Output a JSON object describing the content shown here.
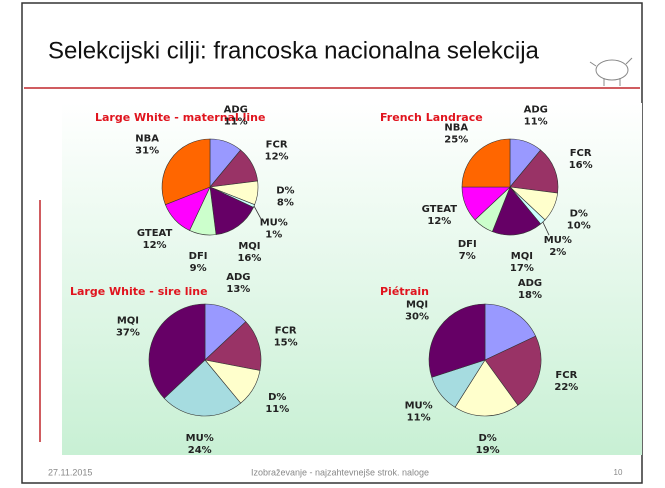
{
  "slide": {
    "title": "Selekcijski cilji: francoska nacionalna selekcija",
    "date": "27.11.2015",
    "footer": "Izobraževanje - najzahtevnejše strok. naloge",
    "page": "10"
  },
  "chart_data": [
    {
      "type": "pie",
      "title": "Large White - maternal line",
      "categories": [
        "ADG",
        "FCR",
        "D%",
        "MU%",
        "MQI",
        "DFI",
        "GTEAT",
        "NBA"
      ],
      "values": [
        11,
        12,
        8,
        1,
        16,
        9,
        12,
        31
      ],
      "value_labels": [
        "11%",
        "12%",
        "8%",
        "1%",
        "16%",
        "9%",
        "12%",
        "31%"
      ],
      "colors": [
        "#9999ff",
        "#993366",
        "#ffffcc",
        "#ccffff",
        "#660066",
        "#ccffcc",
        "#ff00ff",
        "#ff6600"
      ]
    },
    {
      "type": "pie",
      "title": "French Landrace",
      "categories": [
        "ADG",
        "FCR",
        "D%",
        "MU%",
        "MQI",
        "DFI",
        "GTEAT",
        "NBA"
      ],
      "values": [
        11,
        16,
        10,
        2,
        17,
        7,
        12,
        25
      ],
      "value_labels": [
        "11%",
        "16%",
        "10%",
        "2%",
        "17%",
        "7%",
        "12%",
        "25%"
      ],
      "colors": [
        "#9999ff",
        "#993366",
        "#ffffcc",
        "#ccffff",
        "#660066",
        "#ccffcc",
        "#ff00ff",
        "#ff6600"
      ]
    },
    {
      "type": "pie",
      "title": "Large White - sire line",
      "categories": [
        "ADG",
        "FCR",
        "D%",
        "MU%",
        "MQI"
      ],
      "values": [
        13,
        15,
        11,
        24,
        37
      ],
      "value_labels": [
        "13%",
        "15%",
        "11%",
        "24%",
        "37%"
      ],
      "colors": [
        "#9999ff",
        "#993366",
        "#ffffcc",
        "#a6dce0",
        "#660066"
      ]
    },
    {
      "type": "pie",
      "title": "Piétrain",
      "categories": [
        "ADG",
        "FCR",
        "D%",
        "MU%",
        "MQI"
      ],
      "values": [
        18,
        22,
        19,
        11,
        30
      ],
      "value_labels": [
        "18%",
        "22%",
        "19%",
        "11%",
        "30%"
      ],
      "colors": [
        "#9999ff",
        "#993366",
        "#ffffcc",
        "#a6dce0",
        "#660066"
      ]
    }
  ]
}
